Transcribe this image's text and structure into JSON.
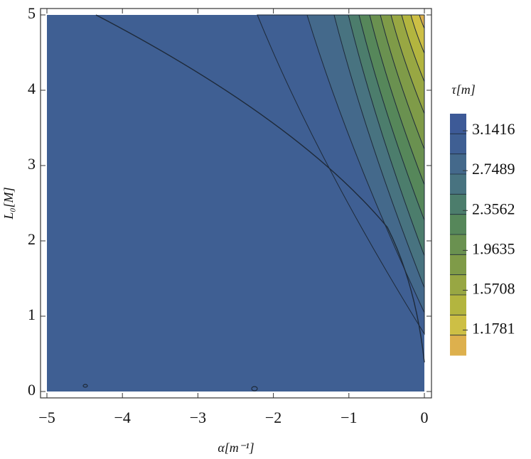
{
  "chart_data": {
    "type": "contour",
    "xlabel": "α[m⁻¹]",
    "ylabel": "L₀[M]",
    "xlim": [
      -5,
      0
    ],
    "ylim": [
      0,
      5
    ],
    "xticks": [
      {
        "value": -5,
        "label": "−5"
      },
      {
        "value": -4,
        "label": "−4"
      },
      {
        "value": -3,
        "label": "−3"
      },
      {
        "value": -2,
        "label": "−2"
      },
      {
        "value": -1,
        "label": "−1"
      },
      0
    ],
    "yticks": [
      0,
      1,
      2,
      3,
      4,
      5
    ],
    "colorbar": {
      "title": "τ[m]",
      "zlim": [
        0.93,
        3.31
      ],
      "ticks": [
        3.1416,
        2.7489,
        2.3562,
        1.9635,
        1.5708,
        1.1781
      ],
      "colors": [
        "#3d5a97",
        "#3f5f93",
        "#44698b",
        "#487380",
        "#4c7d6c",
        "#56875a",
        "#6a9150",
        "#7f9b48",
        "#98a743",
        "#b3b53f",
        "#cdbf45",
        "#ddb04d"
      ]
    }
  }
}
